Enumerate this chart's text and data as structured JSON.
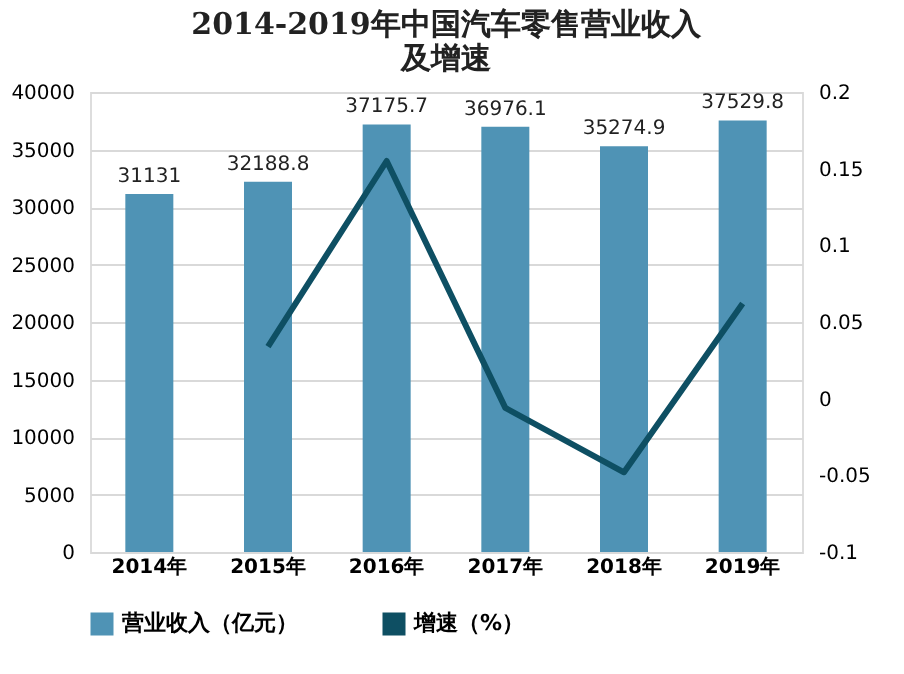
{
  "chart_data": {
    "type": "bar",
    "title": "2014-2019年中国汽车零售营业收入及增速",
    "categories": [
      "2014年",
      "2015年",
      "2016年",
      "2017年",
      "2018年",
      "2019年"
    ],
    "series": [
      {
        "name": "营业收入（亿元）",
        "color": "#4f93b5",
        "values": [
          31131,
          32188.8,
          37175.7,
          36976.1,
          35274.9,
          37529.8
        ],
        "value_labels": [
          "31131",
          "32188.8",
          "37175.7",
          "36976.1",
          "35274.9",
          "37529.8"
        ]
      },
      {
        "name": "增速（%）",
        "type": "line",
        "axis": "y2",
        "color": "#0e4f63",
        "values": [
          null,
          0.034,
          0.155,
          -0.006,
          -0.048,
          0.062
        ]
      }
    ],
    "ylim": [
      0,
      40000
    ],
    "yticks": [
      0,
      5000,
      10000,
      15000,
      20000,
      25000,
      30000,
      35000,
      40000
    ],
    "y2lim": [
      -0.1,
      0.2
    ],
    "y2ticks": [
      -0.1,
      -0.05,
      0,
      0.05,
      0.1,
      0.15,
      0.2
    ],
    "grid": "y",
    "legend": "bottom",
    "marker": "none",
    "line_style": "solid"
  }
}
